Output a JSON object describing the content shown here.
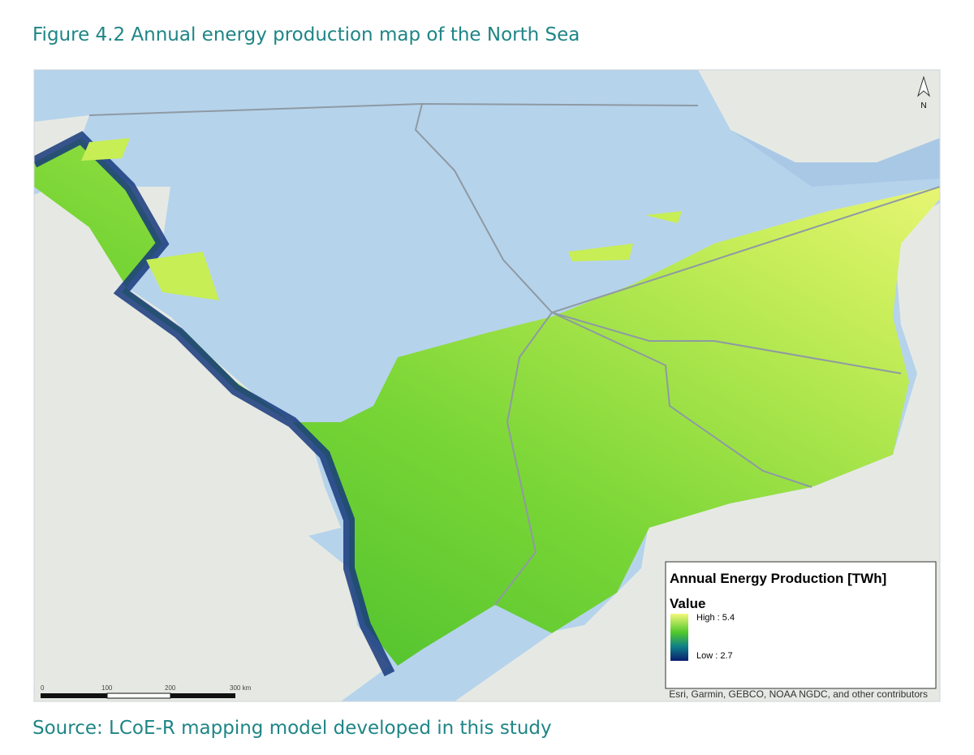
{
  "header": {
    "title": "Figure 4.2 Annual energy production map of the North Sea"
  },
  "map": {
    "north_arrow": "N",
    "legend": {
      "title": "Annual Energy Production [TWh]",
      "subtitle": "Value",
      "high": "High : 5.4",
      "low": "Low : 2.7"
    },
    "scale_bar": [
      "0",
      "100",
      "200",
      "300 km"
    ],
    "attribution": "Esri, Garmin, GEBCO, NOAA NGDC, and other contributors"
  },
  "footer": {
    "source": "Source: LCoE-R mapping model developed in this study"
  }
}
